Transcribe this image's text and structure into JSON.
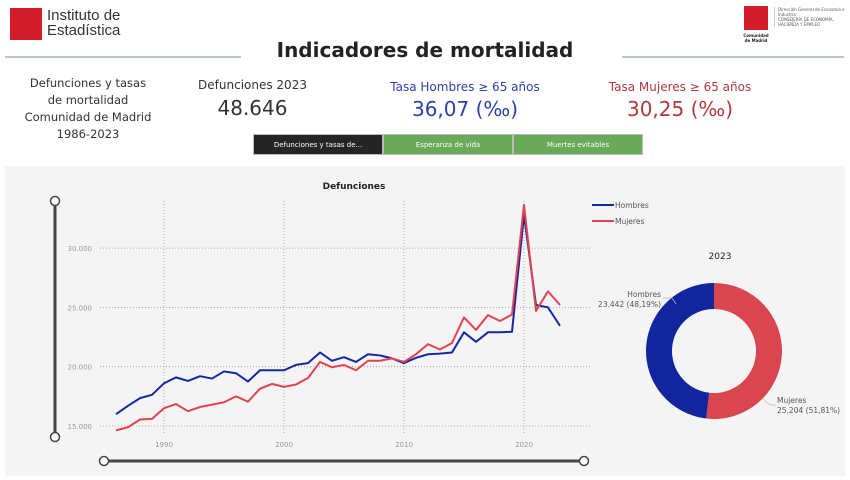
{
  "header": {
    "logo_left": "Instituto de Estadística",
    "logo_left_lines": [
      "Instituto de",
      "Estadística"
    ],
    "logo_right_org": "Comunidad de Madrid",
    "logo_right_lines": [
      "Dirección General de Economía e Industria",
      "CONSEJERÍA DE ECONOMÍA, HACIENDA Y EMPLEO"
    ],
    "title": "Indicadores de mortalidad"
  },
  "description": [
    "Defunciones y tasas",
    "de mortalidad",
    "Comunidad de Madrid",
    "1986-2023"
  ],
  "kpis": {
    "defunciones": {
      "label": "Defunciones 2023",
      "value": "48.646"
    },
    "hombres": {
      "label": "Tasa Hombres ≥ 65 años",
      "value": "36,07 (‰)",
      "color": "#2e3fa8"
    },
    "mujeres": {
      "label": "Tasa Mujeres ≥ 65 años",
      "value": "30,25 (‰)",
      "color": "#b0393f"
    }
  },
  "tabs": [
    {
      "label": "Defunciones y tasas de...",
      "active": true
    },
    {
      "label": "Esperanza de vida",
      "active": false
    },
    {
      "label": "Muertes evitables",
      "active": false
    }
  ],
  "colors": {
    "hombres": "#1428a0",
    "mujeres": "#e0434f",
    "tab_active": "#252525",
    "tab_inactive": "#6aa85a"
  },
  "chart_data": [
    {
      "type": "line",
      "title": "Defunciones",
      "xlabel": "",
      "ylabel": "",
      "x": [
        1986,
        1987,
        1988,
        1989,
        1990,
        1991,
        1992,
        1993,
        1994,
        1995,
        1996,
        1997,
        1998,
        1999,
        2000,
        2001,
        2002,
        2003,
        2004,
        2005,
        2006,
        2007,
        2008,
        2009,
        2010,
        2011,
        2012,
        2013,
        2014,
        2015,
        2016,
        2017,
        2018,
        2019,
        2020,
        2021,
        2022,
        2023
      ],
      "xticks": [
        "1990",
        "2000",
        "2010",
        "2020"
      ],
      "yticks": [
        "15.000",
        "20.000",
        "25.000",
        "30.000"
      ],
      "ylim": [
        14000,
        34500
      ],
      "grid": true,
      "legend": "top-right",
      "series": [
        {
          "name": "Hombres",
          "values": [
            16000,
            16700,
            17350,
            17630,
            18600,
            19100,
            18800,
            19200,
            19000,
            19600,
            19450,
            18750,
            19700,
            19700,
            19700,
            20150,
            20300,
            21200,
            20500,
            20800,
            20400,
            21050,
            20950,
            20700,
            20300,
            20750,
            21050,
            21100,
            21200,
            22900,
            22100,
            22900,
            22900,
            22950,
            32800,
            25200,
            25000,
            23442
          ]
        },
        {
          "name": "Mujeres",
          "values": [
            14630,
            14900,
            15550,
            15600,
            16500,
            16850,
            16250,
            16600,
            16800,
            17000,
            17500,
            17050,
            18150,
            18550,
            18300,
            18500,
            19050,
            20400,
            19950,
            20150,
            19700,
            20500,
            20500,
            20700,
            20400,
            21050,
            21900,
            21450,
            22000,
            24150,
            23100,
            24350,
            23850,
            24400,
            33650,
            24700,
            26350,
            25204
          ]
        }
      ]
    },
    {
      "type": "pie",
      "title": "2023",
      "donut": true,
      "slices": [
        {
          "name": "Hombres",
          "value": 23442,
          "label": "23.442 (48,19%)"
        },
        {
          "name": "Mujeres",
          "value": 25204,
          "label": "25.204 (51,81%)"
        }
      ]
    }
  ]
}
